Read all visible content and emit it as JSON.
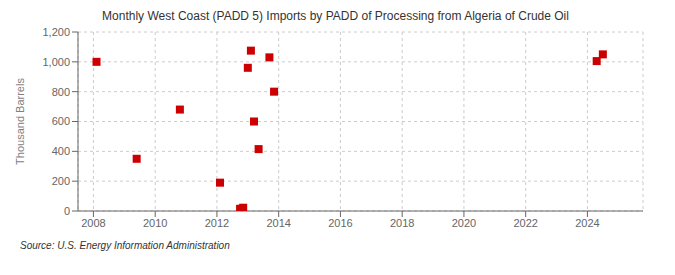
{
  "chart_data": {
    "type": "scatter",
    "title": "Monthly West Coast (PADD 5) Imports by PADD of Processing from Algeria of Crude Oil",
    "ylabel": "Thousand Barrels",
    "source": "Source: U.S. Energy Information Administration",
    "x": [
      2008.1,
      2009.4,
      2010.8,
      2012.1,
      2012.75,
      2012.85,
      2013.0,
      2013.1,
      2013.2,
      2013.35,
      2013.7,
      2013.85,
      2024.3,
      2024.5
    ],
    "values": [
      1000,
      350,
      680,
      190,
      15,
      22,
      960,
      1075,
      600,
      415,
      1030,
      800,
      1005,
      1050
    ],
    "color": "#cc0000",
    "marker": "square",
    "xlim": [
      2007.5,
      2025.8
    ],
    "ylim": [
      0,
      1200
    ],
    "xticks": [
      2008,
      2010,
      2012,
      2014,
      2016,
      2018,
      2020,
      2022,
      2024
    ],
    "yticks": [
      0,
      200,
      400,
      600,
      800,
      {
        "value": 1000,
        "label": "1,000"
      },
      {
        "value": 1200,
        "label": "1,200"
      }
    ],
    "grid": true
  }
}
